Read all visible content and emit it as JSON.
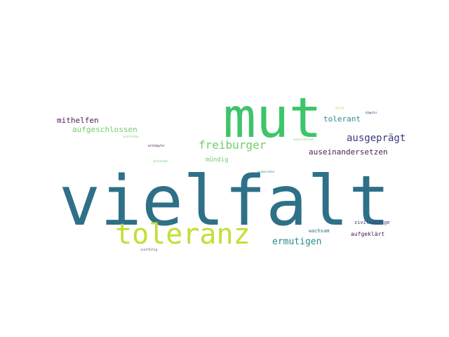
{
  "colors": {
    "background": "#ffffff",
    "teal": "#2e7088",
    "green": "#3ec46b",
    "lime": "#c3df35",
    "navy": "#3b3b7c",
    "purple": "#4b1a55",
    "mid_teal": "#2a8c8a",
    "light_green": "#6fce6a"
  },
  "words": {
    "vielfalt": "vielfalt",
    "mut": "mut",
    "toleranz": "toleranz",
    "freiburger": "freiburger",
    "ermutigen": "ermutigen",
    "ausgepraegt": "ausgeprägt",
    "auseinandersetzen": "auseinandersetzen",
    "mithelfen": "mithelfen",
    "aufgeschlossen": "aufgeschlossen",
    "tolerant": "tolerant",
    "muendig": "mündig",
    "zivilcourage": "zivilcourage",
    "wachsam": "wachsam",
    "aufgeklaert": "aufgeklärt",
    "mutig": "mutig",
    "mitkaempfer": "mitkämpfer",
    "unterstuetzen": "unterstützen",
    "einschreiten": "einschreiten",
    "eintreten": "eintreten",
    "aufstehen": "aufstehen",
    "einmischen": "einmischen",
    "vielfaeltig": "vielfältig",
    "kaempfer": "kämpfer"
  }
}
